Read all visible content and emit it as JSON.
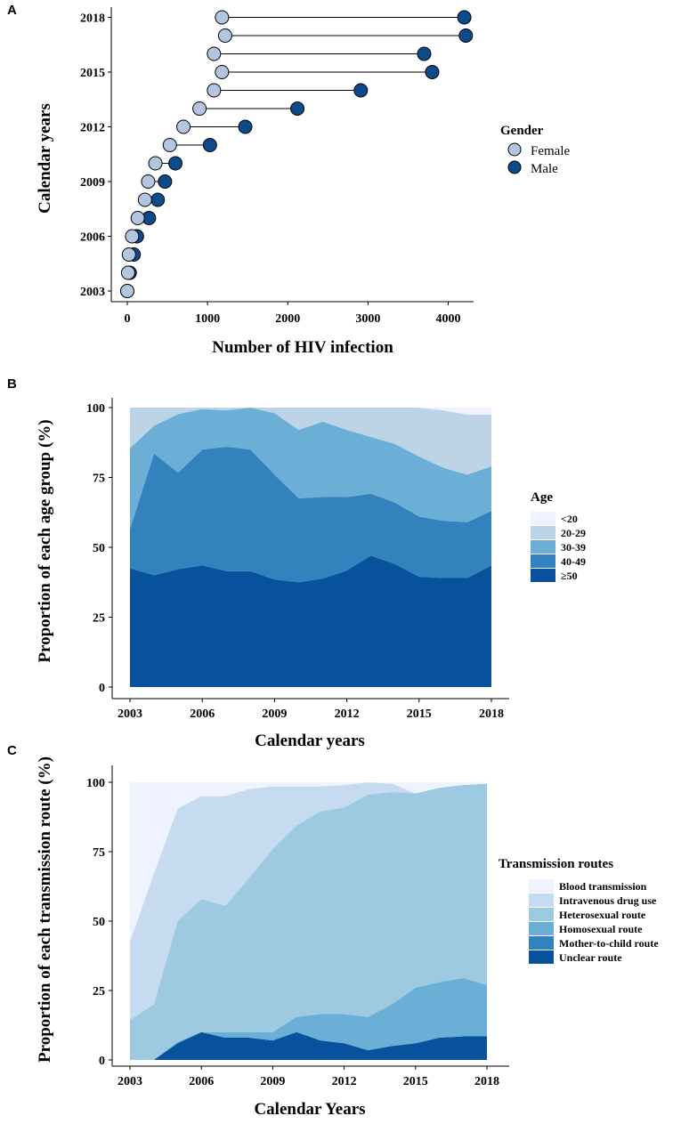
{
  "chart_data": [
    {
      "panel": "A",
      "type": "dumbbell",
      "ylabel": "Calendar years",
      "xlabel": "Number of HIV infection",
      "years": [
        2003,
        2004,
        2005,
        2006,
        2007,
        2008,
        2009,
        2010,
        2011,
        2012,
        2013,
        2014,
        2015,
        2016,
        2017,
        2018
      ],
      "series": [
        {
          "name": "Female",
          "color": "#b3c6df",
          "values": [
            0,
            10,
            20,
            60,
            130,
            220,
            260,
            350,
            530,
            700,
            900,
            1080,
            1180,
            1080,
            1220,
            1180
          ]
        },
        {
          "name": "Male",
          "color": "#0d4a8c",
          "values": [
            0,
            30,
            80,
            120,
            270,
            380,
            470,
            600,
            1030,
            1470,
            2120,
            2910,
            3800,
            3700,
            4220,
            4200
          ]
        }
      ],
      "xticks": [
        "0",
        "1000",
        "2000",
        "3000",
        "4000"
      ],
      "yticks": [
        "2003",
        "2006",
        "2009",
        "2012",
        "2015",
        "2018"
      ],
      "xlim": [
        0,
        4500
      ],
      "legend": {
        "title": "Gender",
        "labels": [
          "Female",
          "Male"
        ]
      }
    },
    {
      "panel": "B",
      "type": "area",
      "stacked": true,
      "ylabel": "Proportion of each age group (%)",
      "xlabel": "Calendar years",
      "x": [
        2003,
        2004,
        2005,
        2006,
        2007,
        2008,
        2009,
        2010,
        2011,
        2012,
        2013,
        2014,
        2015,
        2016,
        2017,
        2018
      ],
      "series": [
        {
          "name": "≥50",
          "color": "#08519c",
          "values": [
            42.5,
            40,
            42.2,
            43.5,
            41.5,
            41.5,
            38.5,
            37.5,
            38.8,
            41.7,
            47,
            44,
            39.5,
            39,
            39,
            43.5
          ]
        },
        {
          "name": "40-49",
          "color": "#3182bd",
          "values": [
            14,
            43.5,
            34.5,
            41.5,
            44.5,
            43.5,
            37.5,
            30,
            29.2,
            26.3,
            22.2,
            22,
            21.5,
            20.5,
            20,
            19.5
          ]
        },
        {
          "name": "30-39",
          "color": "#6baed6",
          "values": [
            29,
            10,
            21,
            14.5,
            13,
            15,
            22,
            24.5,
            27,
            24,
            20.3,
            21,
            21.5,
            19,
            17,
            16
          ]
        },
        {
          "name": "20-29",
          "color": "#bdd4e6",
          "values": [
            14.5,
            6.5,
            2.3,
            0.5,
            1,
            0,
            2,
            8,
            5,
            8,
            10.5,
            13,
            17.5,
            20.5,
            21.5,
            18.5
          ]
        },
        {
          "name": "<20",
          "color": "#eff3ff",
          "values": [
            0,
            0,
            0,
            0,
            0,
            0,
            0,
            0,
            0,
            0,
            0,
            0,
            0,
            1,
            2.5,
            2.5
          ]
        }
      ],
      "xticks": [
        "2003",
        "2006",
        "2009",
        "2012",
        "2015",
        "2018"
      ],
      "yticks": [
        "0",
        "25",
        "50",
        "75",
        "100"
      ],
      "ylim": [
        0,
        100
      ],
      "legend": {
        "title": "Age",
        "labels": [
          "<20",
          "20-29",
          "30-39",
          "40-49",
          "≥50"
        ]
      }
    },
    {
      "panel": "C",
      "type": "area",
      "stacked": true,
      "ylabel": "Proportion of each transmission route (%)",
      "xlabel": "Calendar Years",
      "x": [
        2003,
        2004,
        2005,
        2006,
        2007,
        2008,
        2009,
        2010,
        2011,
        2012,
        2013,
        2014,
        2015,
        2016,
        2017,
        2018
      ],
      "series": [
        {
          "name": "Unclear route",
          "color": "#08519c",
          "values": [
            0,
            0,
            6,
            10,
            8,
            8,
            7,
            10,
            7,
            6,
            3.5,
            5,
            6,
            8,
            8.5,
            8.5
          ]
        },
        {
          "name": "Mother-to-child route",
          "color": "#3182bd",
          "values": [
            0,
            0,
            0,
            0,
            0,
            0,
            0,
            0,
            0,
            0,
            0,
            0,
            0,
            0,
            0,
            0
          ]
        },
        {
          "name": "Homosexual route",
          "color": "#6baed6",
          "values": [
            0,
            0,
            0.5,
            0,
            2,
            2,
            3,
            5.5,
            9.5,
            10.5,
            12,
            15,
            20,
            20,
            21,
            18.5
          ]
        },
        {
          "name": "Heterosexual route",
          "color": "#9ecae1",
          "values": [
            14.5,
            20,
            43.5,
            48,
            45.5,
            55.5,
            66,
            69,
            73,
            74.5,
            80,
            76.5,
            70,
            70,
            69.5,
            72.5
          ]
        },
        {
          "name": "Intravenous drug use",
          "color": "#c6dbef",
          "values": [
            28,
            47,
            40.5,
            37,
            39.5,
            32,
            22.5,
            14,
            9,
            8,
            4.5,
            3,
            0,
            0,
            0,
            0
          ]
        },
        {
          "name": "Blood transmission",
          "color": "#eff3ff",
          "values": [
            57.5,
            33,
            9.5,
            5,
            5,
            2.5,
            1.5,
            1.5,
            1.5,
            1,
            0,
            0.5,
            4,
            2,
            1,
            0.5
          ]
        }
      ],
      "xticks": [
        "2003",
        "2006",
        "2009",
        "2012",
        "2015",
        "2018"
      ],
      "yticks": [
        "0",
        "25",
        "50",
        "75",
        "100"
      ],
      "ylim": [
        0,
        100
      ],
      "legend": {
        "title": "Transmission routes",
        "labels": [
          "Blood transmission",
          "Intravenous drug use",
          "Heterosexual route",
          "Homosexual route",
          "Mother-to-child route",
          "Unclear route"
        ]
      }
    }
  ],
  "panel_labels": [
    "A",
    "B",
    "C"
  ]
}
